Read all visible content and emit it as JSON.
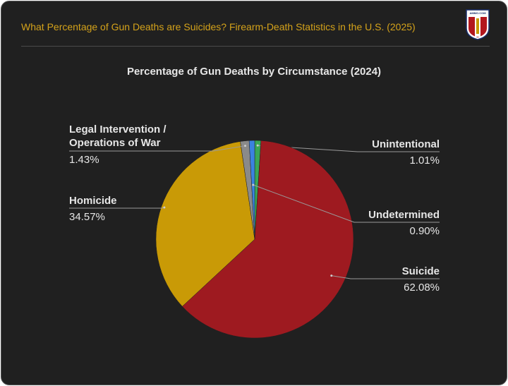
{
  "header": {
    "title": "What Percentage of Gun Deaths are Suicides? Firearm-Death Statistics in the U.S. (2025)",
    "logo": "AMMO.COM"
  },
  "chart_data": {
    "type": "pie",
    "title": "Percentage of Gun Deaths by Circumstance (2024)",
    "categories": [
      "Unintentional",
      "Suicide",
      "Homicide",
      "Legal Intervention / Operations of War",
      "Undetermined"
    ],
    "values": [
      1.01,
      62.08,
      34.57,
      1.43,
      0.9
    ],
    "value_labels": [
      "1.01%",
      "62.08%",
      "34.57%",
      "1.43%",
      "0.90%"
    ],
    "colors": [
      "#3aa757",
      "#9e1a20",
      "#c99a06",
      "#8a8a8a",
      "#3b82e0"
    ]
  }
}
